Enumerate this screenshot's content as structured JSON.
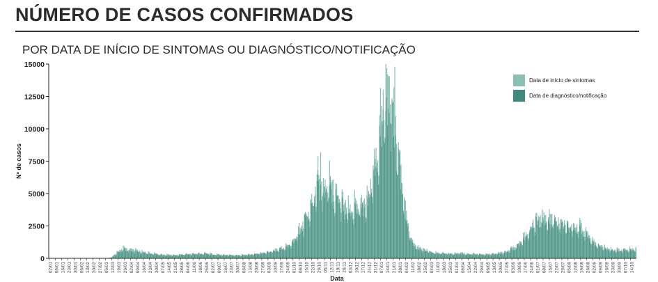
{
  "header": {
    "title": "NÚMERO DE CASOS CONFIRMADOS",
    "subtitle": "POR DATA DE INÍCIO DE SINTOMAS OU DIAGNÓSTICO/NOTIFICAÇÃO"
  },
  "colors": {
    "sintomas": "#8cbfb3",
    "diagnostico": "#3f8a7c",
    "axis": "#222222"
  },
  "chart_data": {
    "type": "bar",
    "xlabel": "Data",
    "ylabel": "Nº de casos",
    "ylim": [
      0,
      15000
    ],
    "yticks": [
      0,
      2500,
      5000,
      7500,
      10000,
      12500,
      15000
    ],
    "x_start": "2020-01-02",
    "x_tick_labels": [
      "02/01",
      "09/01",
      "16/01",
      "23/01",
      "30/01",
      "06/02",
      "13/02",
      "20/02",
      "27/02",
      "05/03",
      "12/03",
      "19/03",
      "26/03",
      "02/04",
      "09/04",
      "16/04",
      "23/04",
      "30/04",
      "07/05",
      "14/05",
      "21/05",
      "28/05",
      "04/06",
      "11/06",
      "18/06",
      "25/06",
      "02/07",
      "09/07",
      "16/07",
      "23/07",
      "30/07",
      "06/08",
      "13/08",
      "20/08",
      "27/08",
      "03/09",
      "10/09",
      "17/09",
      "24/09",
      "01/10",
      "08/10",
      "15/10",
      "22/10",
      "29/10",
      "05/11",
      "12/11",
      "19/11",
      "26/11",
      "03/12",
      "10/12",
      "17/12",
      "24/12",
      "31/12",
      "07/01",
      "14/01",
      "21/01",
      "28/01",
      "04/02",
      "11/02",
      "18/02",
      "25/02",
      "04/03",
      "11/03",
      "18/03",
      "25/03",
      "01/04",
      "08/04",
      "15/04",
      "22/04",
      "29/04",
      "06/05",
      "13/05",
      "20/05",
      "27/05",
      "03/06",
      "10/06",
      "17/06",
      "24/06",
      "01/07",
      "08/07",
      "15/07",
      "22/07",
      "29/07",
      "05/08",
      "12/08",
      "19/08",
      "26/08",
      "02/09",
      "09/09",
      "16/09",
      "23/09",
      "30/09",
      "07/10",
      "14/10"
    ],
    "series": [
      {
        "name": "Data de início de sintomas",
        "color_key": "sintomas",
        "weekly_values": [
          0,
          0,
          0,
          0,
          0,
          0,
          0,
          0,
          0,
          0,
          80,
          550,
          800,
          700,
          600,
          500,
          400,
          350,
          300,
          280,
          260,
          300,
          330,
          350,
          380,
          380,
          330,
          300,
          280,
          260,
          240,
          260,
          300,
          340,
          400,
          500,
          620,
          780,
          900,
          1300,
          2200,
          3200,
          4200,
          6300,
          5700,
          5800,
          4900,
          4100,
          4000,
          4200,
          4300,
          4600,
          6800,
          10500,
          13000,
          11500,
          8000,
          3600,
          1300,
          850,
          700,
          550,
          450,
          400,
          380,
          380,
          400,
          370,
          350,
          330,
          320,
          360,
          420,
          520,
          750,
          1050,
          1600,
          2300,
          3000,
          3300,
          3200,
          2900,
          2700,
          2600,
          2500,
          2400,
          2000,
          1300,
          950,
          800,
          700,
          650,
          680,
          700
        ]
      },
      {
        "name": "Data de diagnóstico/notificação",
        "color_key": "diagnostico",
        "weekly_values": [
          0,
          0,
          0,
          0,
          0,
          0,
          0,
          0,
          0,
          0,
          40,
          400,
          650,
          600,
          500,
          420,
          350,
          300,
          260,
          240,
          230,
          260,
          290,
          310,
          340,
          340,
          300,
          270,
          250,
          230,
          210,
          230,
          270,
          300,
          360,
          450,
          560,
          700,
          820,
          1150,
          1900,
          2800,
          3700,
          5400,
          5000,
          5000,
          4300,
          3600,
          3500,
          3700,
          3800,
          4100,
          6000,
          9200,
          11500,
          10200,
          7000,
          3100,
          1100,
          700,
          580,
          460,
          380,
          340,
          320,
          320,
          340,
          310,
          300,
          280,
          270,
          300,
          360,
          440,
          640,
          900,
          1400,
          2000,
          2600,
          2850,
          2800,
          2550,
          2350,
          2250,
          2150,
          2050,
          1700,
          1100,
          800,
          680,
          600,
          560,
          580,
          600
        ]
      }
    ],
    "peaks": [
      {
        "week_index": 43,
        "day": 3,
        "value": 8200
      },
      {
        "week_index": 54,
        "day": 1,
        "value": 14200
      },
      {
        "week_index": 55,
        "day": 2,
        "value": 14800
      }
    ],
    "legend_position": "top-right",
    "grid": false
  }
}
